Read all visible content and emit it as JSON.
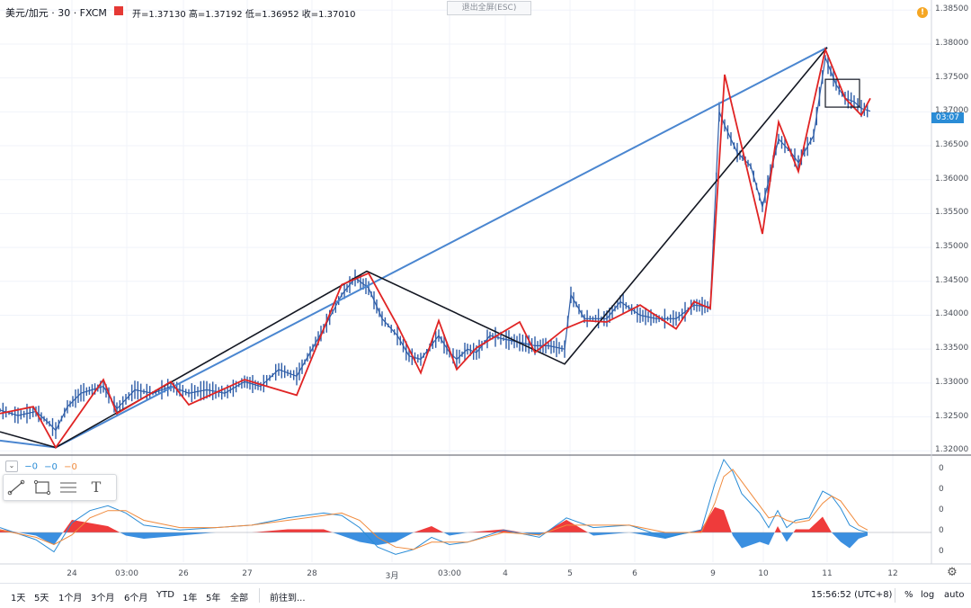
{
  "header": {
    "symbol": "美元/加元 · 30 · FXCM",
    "open_label": "开=1.37130",
    "high_label": "高=1.37192",
    "low_label": "低=1.36952",
    "close_label": "收=1.37010",
    "exit_fullscreen": "退出全屏(ESC)",
    "alert_icon": "!"
  },
  "price_axis": {
    "labels": [
      "1.38500",
      "1.38000",
      "1.37500",
      "1.37000",
      "1.36500",
      "1.36000",
      "1.35500",
      "1.35000",
      "1.34500",
      "1.34000",
      "1.33500",
      "1.33000",
      "1.32500",
      "1.32000"
    ],
    "current_price": "03:07"
  },
  "osc_axis": {
    "labels": [
      "0",
      "0",
      "0",
      "0",
      "0"
    ]
  },
  "time_axis": {
    "labels": [
      "24",
      "03:00",
      "26",
      "27",
      "28",
      "3月",
      "03:00",
      "4",
      "5",
      "6",
      "9",
      "10",
      "11",
      "12"
    ]
  },
  "indicator_legend": {
    "toggle": "⌄",
    "v1": "−0",
    "v2": "−0",
    "v3": "−0"
  },
  "toolbar": {
    "tools": [
      "trend-line-tool",
      "rectangle-tool",
      "parallel-lines-tool",
      "text-tool"
    ],
    "text_tool_label": "T"
  },
  "bottom_bar": {
    "ranges": [
      "1天",
      "5天",
      "1个月",
      "3个月",
      "6个月",
      "YTD",
      "1年",
      "5年",
      "全部"
    ],
    "goto": "前往到...",
    "clock": "15:56:52 (UTC+8)",
    "percent": "%",
    "log": "log",
    "auto": "auto"
  },
  "colors": {
    "zigzag": "#e02424",
    "trend_blue": "#4a86d0",
    "trend_black": "#131722",
    "candle": "#2f5ea8",
    "macd_pos": "#ef3b3b",
    "macd_neg": "#3b8fe0",
    "signal": "#f08a3c"
  },
  "chart_data": {
    "type": "line",
    "title": "美元/加元 · 30 · FXCM",
    "ylim": [
      1.3195,
      1.3865
    ],
    "x_labels": [
      "24",
      "03:00",
      "26",
      "27",
      "28",
      "3月",
      "03:00",
      "4",
      "5",
      "6",
      "9",
      "10",
      "11",
      "12"
    ],
    "zigzag": {
      "name": "zigzag",
      "x": [
        0,
        37,
        62,
        115,
        130,
        190,
        210,
        272,
        330,
        380,
        410,
        442,
        468,
        488,
        508,
        530,
        578,
        595,
        628,
        650,
        675,
        712,
        752,
        772,
        790,
        806,
        848,
        866,
        888,
        918,
        940,
        958,
        968
      ],
      "y": [
        1.3255,
        1.3265,
        1.3205,
        1.3305,
        1.3255,
        1.3302,
        1.3268,
        1.3305,
        1.3282,
        1.3445,
        1.3462,
        1.3385,
        1.3315,
        1.3392,
        1.332,
        1.3352,
        1.339,
        1.3345,
        1.338,
        1.3392,
        1.339,
        1.3415,
        1.338,
        1.342,
        1.341,
        1.3755,
        1.352,
        1.3685,
        1.3612,
        1.3792,
        1.372,
        1.3695,
        1.372
      ]
    },
    "trend_black": {
      "x": [
        0,
        62,
        408,
        628,
        920
      ],
      "y": [
        1.3228,
        1.3205,
        1.3465,
        1.3328,
        1.3795
      ]
    },
    "trend_blue": {
      "x": [
        0,
        62,
        920
      ],
      "y": [
        1.3215,
        1.3205,
        1.3795
      ]
    },
    "candles_path": {
      "x": [
        0,
        20,
        40,
        55,
        62,
        75,
        90,
        115,
        130,
        150,
        170,
        190,
        210,
        230,
        250,
        272,
        290,
        310,
        330,
        345,
        360,
        380,
        395,
        410,
        425,
        442,
        455,
        468,
        488,
        500,
        508,
        520,
        530,
        545,
        560,
        578,
        595,
        610,
        628,
        635,
        650,
        675,
        690,
        712,
        730,
        752,
        772,
        790,
        800,
        806,
        820,
        835,
        848,
        866,
        880,
        888,
        905,
        918,
        930,
        940,
        950,
        958,
        968
      ],
      "y": [
        1.326,
        1.3252,
        1.3258,
        1.324,
        1.323,
        1.3265,
        1.3285,
        1.3295,
        1.3262,
        1.329,
        1.3285,
        1.3295,
        1.3285,
        1.329,
        1.3285,
        1.3302,
        1.3295,
        1.332,
        1.331,
        1.3345,
        1.338,
        1.343,
        1.3455,
        1.344,
        1.3395,
        1.337,
        1.334,
        1.3335,
        1.337,
        1.3345,
        1.3335,
        1.335,
        1.3345,
        1.337,
        1.3365,
        1.336,
        1.3355,
        1.3355,
        1.335,
        1.343,
        1.3395,
        1.3395,
        1.342,
        1.34,
        1.3395,
        1.3395,
        1.3415,
        1.3412,
        1.37,
        1.368,
        1.364,
        1.362,
        1.356,
        1.366,
        1.364,
        1.3625,
        1.3665,
        1.378,
        1.374,
        1.372,
        1.3715,
        1.3705,
        1.3701
      ]
    },
    "annotation_box": {
      "x": [
        918,
        956
      ],
      "y": [
        1.3748,
        1.3707
      ]
    },
    "oscillator": {
      "x": [
        0,
        40,
        60,
        80,
        100,
        120,
        140,
        160,
        200,
        240,
        280,
        320,
        360,
        380,
        400,
        420,
        440,
        460,
        480,
        500,
        520,
        560,
        600,
        630,
        660,
        700,
        740,
        780,
        795,
        805,
        815,
        825,
        835,
        845,
        855,
        865,
        875,
        885,
        900,
        915,
        925,
        935,
        945,
        955,
        965
      ],
      "macd": [
        0.2,
        -0.3,
        -0.8,
        0.4,
        0.9,
        1.1,
        0.8,
        0.3,
        0.1,
        0.2,
        0.3,
        0.6,
        0.8,
        0.7,
        0.2,
        -0.6,
        -0.9,
        -0.7,
        -0.2,
        -0.5,
        -0.4,
        0.1,
        -0.2,
        0.6,
        0.2,
        0.3,
        -0.2,
        0.1,
        2.0,
        3.0,
        2.5,
        1.6,
        1.2,
        0.8,
        0.2,
        0.9,
        0.2,
        0.5,
        0.6,
        1.7,
        1.5,
        1.0,
        0.3,
        0.1,
        0.0
      ],
      "signal": [
        0.1,
        -0.2,
        -0.5,
        -0.1,
        0.6,
        0.9,
        0.9,
        0.5,
        0.2,
        0.2,
        0.3,
        0.5,
        0.7,
        0.8,
        0.5,
        -0.2,
        -0.6,
        -0.7,
        -0.4,
        -0.4,
        -0.4,
        0.0,
        -0.1,
        0.3,
        0.3,
        0.3,
        0.0,
        0.0,
        1.2,
        2.3,
        2.6,
        2.1,
        1.6,
        1.1,
        0.6,
        0.7,
        0.5,
        0.4,
        0.5,
        1.2,
        1.5,
        1.3,
        0.8,
        0.3,
        0.1
      ],
      "hist": [
        0.1,
        -0.1,
        -0.4,
        0.4,
        0.3,
        0.2,
        -0.1,
        -0.2,
        -0.1,
        0.0,
        0.0,
        0.1,
        0.1,
        -0.1,
        -0.3,
        -0.4,
        -0.3,
        0.0,
        0.2,
        -0.1,
        0.0,
        0.1,
        -0.1,
        0.4,
        -0.1,
        0.0,
        -0.2,
        0.1,
        0.8,
        0.7,
        -0.1,
        -0.5,
        -0.4,
        -0.3,
        -0.4,
        0.2,
        -0.3,
        0.1,
        0.1,
        0.5,
        0.0,
        -0.3,
        -0.5,
        -0.2,
        -0.1
      ]
    }
  }
}
